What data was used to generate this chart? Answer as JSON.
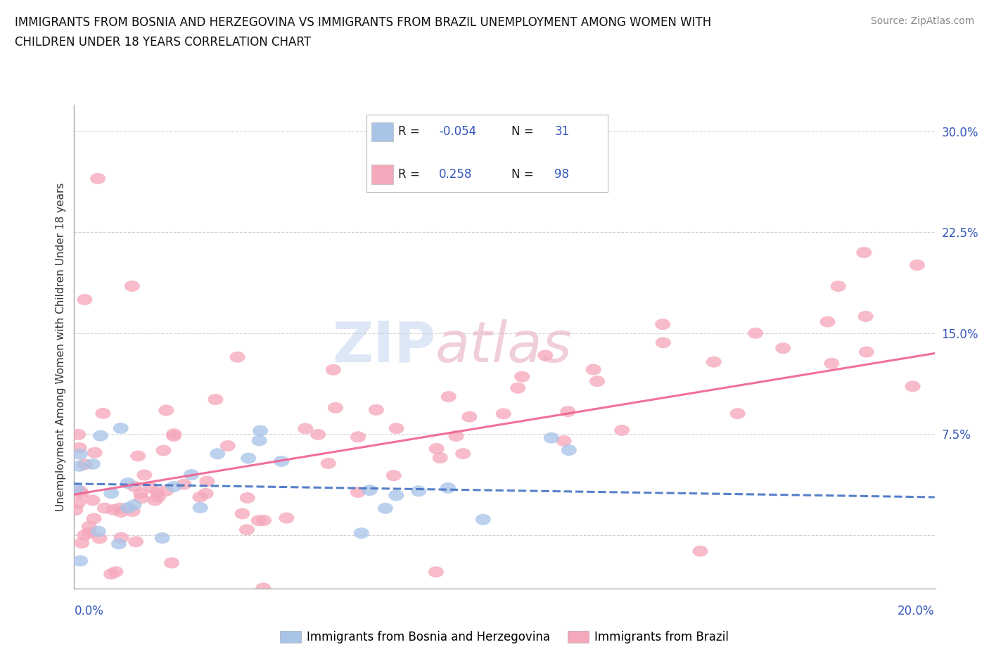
{
  "title_line1": "IMMIGRANTS FROM BOSNIA AND HERZEGOVINA VS IMMIGRANTS FROM BRAZIL UNEMPLOYMENT AMONG WOMEN WITH",
  "title_line2": "CHILDREN UNDER 18 YEARS CORRELATION CHART",
  "source_text": "Source: ZipAtlas.com",
  "ylabel": "Unemployment Among Women with Children Under 18 years",
  "y_ticks_right": [
    0.0,
    0.075,
    0.15,
    0.225,
    0.3
  ],
  "y_tick_labels_right": [
    "",
    "7.5%",
    "15.0%",
    "22.5%",
    "30.0%"
  ],
  "xmin": 0.0,
  "xmax": 0.2,
  "ymin": -0.04,
  "ymax": 0.32,
  "bosnia_color": "#aac4e8",
  "brazil_color": "#f5a8bc",
  "bosnia_line_color": "#4472c4",
  "brazil_line_color": "#f06090",
  "bosnia_R": -0.054,
  "bosnia_N": 31,
  "brazil_R": 0.258,
  "brazil_N": 98,
  "legend_label_bosnia": "Immigrants from Bosnia and Herzegovina",
  "legend_label_brazil": "Immigrants from Brazil",
  "watermark_zip": "ZIP",
  "watermark_atlas": "atlas",
  "bosnia_trend_start_y": 0.038,
  "bosnia_trend_end_y": 0.028,
  "brazil_trend_start_y": 0.03,
  "brazil_trend_end_y": 0.135
}
